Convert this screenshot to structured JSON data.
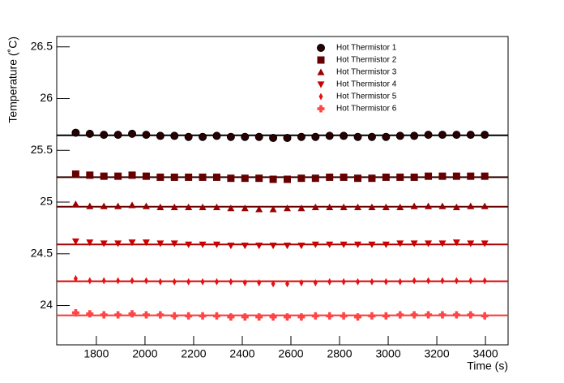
{
  "chart_data": {
    "type": "scatter",
    "xlabel": "Time (s)",
    "ylabel": "Temperature (˚C)",
    "xlim": [
      1637,
      3493
    ],
    "ylim": [
      23.62,
      26.6
    ],
    "xticks": [
      1800,
      2000,
      2200,
      2400,
      2600,
      2800,
      3000,
      3200,
      3400
    ],
    "yticks": [
      24,
      24.5,
      25,
      25.5,
      26,
      26.5
    ],
    "x": [
      1715,
      1773,
      1831,
      1889,
      1947,
      2005,
      2063,
      2121,
      2179,
      2237,
      2295,
      2353,
      2411,
      2469,
      2527,
      2585,
      2643,
      2701,
      2759,
      2817,
      2875,
      2933,
      2991,
      3049,
      3107,
      3165,
      3223,
      3281,
      3339,
      3397
    ],
    "legend": "top-right",
    "series": [
      {
        "name": "Hot Thermistor 1",
        "color": "#2a0000",
        "marker": "circle",
        "fit": 25.645,
        "fit_color": "#000000",
        "values": [
          25.67,
          25.66,
          25.65,
          25.65,
          25.66,
          25.65,
          25.64,
          25.64,
          25.63,
          25.63,
          25.64,
          25.63,
          25.63,
          25.63,
          25.62,
          25.62,
          25.63,
          25.63,
          25.64,
          25.64,
          25.63,
          25.63,
          25.63,
          25.64,
          25.64,
          25.65,
          25.65,
          25.65,
          25.65,
          25.65
        ]
      },
      {
        "name": "Hot Thermistor 2",
        "color": "#660000",
        "marker": "square",
        "fit": 25.24,
        "fit_color": "#330000",
        "values": [
          25.27,
          25.26,
          25.25,
          25.25,
          25.26,
          25.25,
          25.24,
          25.24,
          25.24,
          25.24,
          25.24,
          25.23,
          25.23,
          25.23,
          25.22,
          25.22,
          25.23,
          25.23,
          25.24,
          25.24,
          25.23,
          25.23,
          25.24,
          25.24,
          25.24,
          25.25,
          25.25,
          25.25,
          25.25,
          25.25
        ]
      },
      {
        "name": "Hot Thermistor 3",
        "color": "#990000",
        "marker": "triangle-up",
        "fit": 24.955,
        "fit_color": "#660000",
        "values": [
          24.98,
          24.96,
          24.96,
          24.96,
          24.97,
          24.96,
          24.95,
          24.95,
          24.95,
          24.95,
          24.95,
          24.94,
          24.94,
          24.93,
          24.93,
          24.94,
          24.94,
          24.95,
          24.95,
          24.95,
          24.95,
          24.95,
          24.95,
          24.95,
          24.96,
          24.96,
          24.96,
          24.95,
          24.96,
          24.96
        ]
      },
      {
        "name": "Hot Thermistor 4",
        "color": "#cc0000",
        "marker": "triangle-down",
        "fit": 24.59,
        "fit_color": "#aa0000",
        "values": [
          24.62,
          24.61,
          24.6,
          24.6,
          24.61,
          24.61,
          24.6,
          24.6,
          24.59,
          24.59,
          24.59,
          24.58,
          24.58,
          24.58,
          24.58,
          24.58,
          24.58,
          24.59,
          24.59,
          24.59,
          24.59,
          24.59,
          24.59,
          24.6,
          24.6,
          24.6,
          24.6,
          24.61,
          24.6,
          24.6
        ]
      },
      {
        "name": "Hot Thermistor 5",
        "color": "#e81010",
        "marker": "diamond",
        "fit": 24.235,
        "fit_color": "#dd0000",
        "values": [
          24.26,
          24.24,
          24.24,
          24.24,
          24.24,
          24.24,
          24.23,
          24.23,
          24.23,
          24.23,
          24.23,
          24.23,
          24.22,
          24.22,
          24.21,
          24.21,
          24.22,
          24.22,
          24.23,
          24.23,
          24.23,
          24.23,
          24.23,
          24.23,
          24.24,
          24.24,
          24.24,
          24.24,
          24.24,
          24.24
        ]
      },
      {
        "name": "Hot Thermistor 6",
        "color": "#ff4444",
        "marker": "cross",
        "fit": 23.905,
        "fit_color": "#ff3333",
        "values": [
          23.93,
          23.92,
          23.91,
          23.91,
          23.92,
          23.91,
          23.91,
          23.9,
          23.9,
          23.9,
          23.9,
          23.89,
          23.89,
          23.89,
          23.89,
          23.89,
          23.89,
          23.9,
          23.9,
          23.9,
          23.89,
          23.9,
          23.9,
          23.91,
          23.91,
          23.91,
          23.91,
          23.91,
          23.91,
          23.9
        ]
      }
    ]
  }
}
